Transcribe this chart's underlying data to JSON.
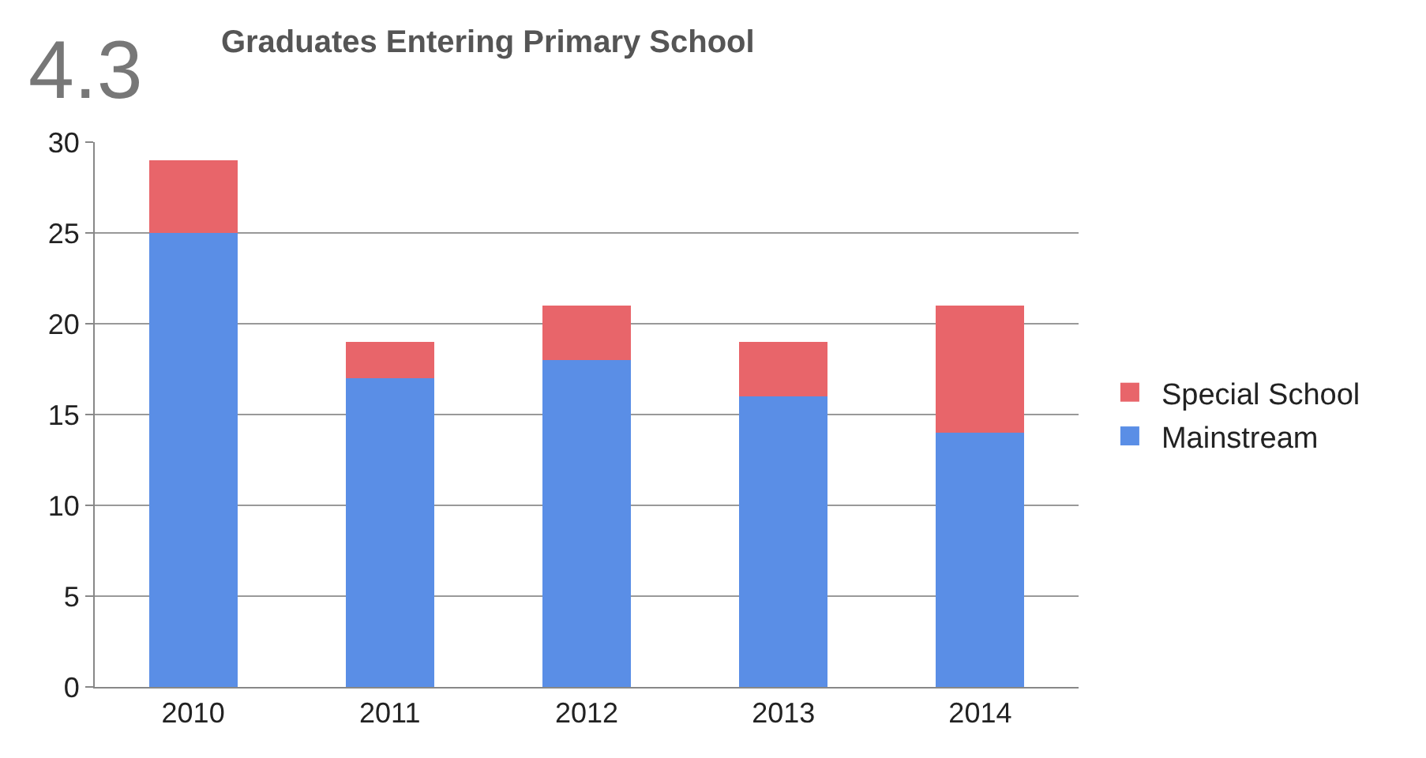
{
  "chart_data": {
    "type": "bar",
    "title": "Graduates Entering Primary School",
    "annotations": [
      "4.3"
    ],
    "categories": [
      "2010",
      "2011",
      "2012",
      "2013",
      "2014"
    ],
    "stacked": true,
    "series": [
      {
        "name": "Mainstream",
        "color": "#5a8ee6",
        "values": [
          25,
          17,
          18,
          16,
          14
        ]
      },
      {
        "name": "Special School",
        "color": "#e8656a",
        "values": [
          4,
          2,
          3,
          3,
          7
        ]
      }
    ],
    "ylim": [
      0,
      30
    ],
    "yticks": [
      0,
      5,
      10,
      15,
      20,
      25,
      30
    ],
    "grid": "y",
    "legend": "right"
  }
}
